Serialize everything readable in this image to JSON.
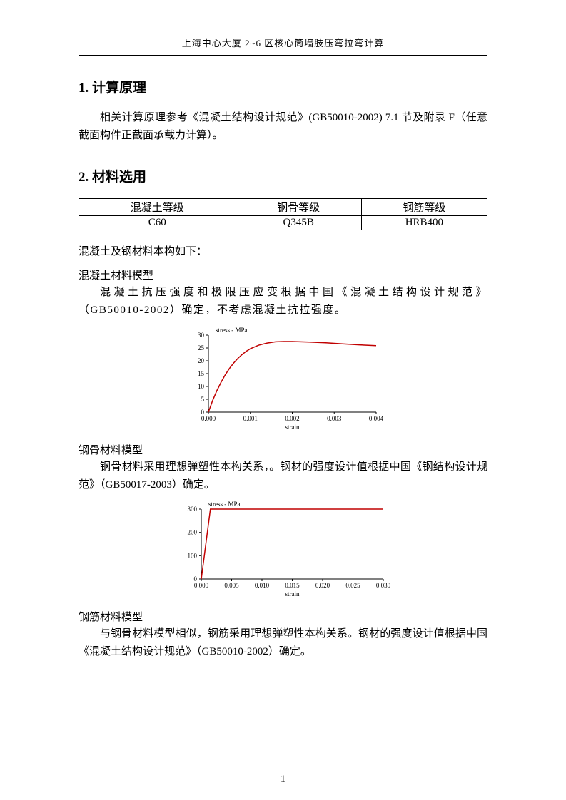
{
  "header": "上海中心大厦 2~6 区核心筒墙肢压弯拉弯计算",
  "section1": {
    "num": "1.",
    "title": "计算原理",
    "para": "相关计算原理参考《混凝土结构设计规范》(GB50010-2002) 7.1 节及附录 F（任意截面构件正截面承载力计算）。"
  },
  "section2": {
    "num": "2.",
    "title": "材料选用",
    "table": {
      "headers": [
        "混凝土等级",
        "钢骨等级",
        "钢筋等级"
      ],
      "row": [
        "C60",
        "Q345B",
        "HRB400"
      ]
    },
    "intro": "混凝土及钢材料本构如下：",
    "concrete": {
      "title": "混凝土材料模型",
      "para": "混凝土抗压强度和极限压应变根据中国《混凝土结构设计规范》（GB50010-2002）确定，不考虑混凝土抗拉强度。"
    },
    "steelShape": {
      "title": "钢骨材料模型",
      "para": "钢骨材料采用理想弹塑性本构关系，。钢材的强度设计值根据中国《钢结构设计规范》（GB50017-2003）确定。"
    },
    "rebar": {
      "title": "钢筋材料模型",
      "para": "与钢骨材料模型相似，钢筋采用理想弹塑性本构关系。钢材的强度设计值根据中国《混凝土结构设计规范》（GB50010-2002）确定。"
    }
  },
  "chart_concrete": {
    "type": "line",
    "title": "stress - MPa",
    "xlabel": "strain",
    "xlim": [
      0,
      0.004
    ],
    "ylim": [
      0,
      30
    ],
    "xticks": [
      0.0,
      0.001,
      0.002,
      0.003,
      0.004
    ],
    "xtick_labels": [
      "0.000",
      "0.001",
      "0.002",
      "0.003",
      "0.004"
    ],
    "yticks": [
      0,
      5,
      10,
      15,
      20,
      25,
      30
    ],
    "ytick_labels": [
      "0",
      "5",
      "10",
      "15",
      "20",
      "25",
      "30"
    ],
    "curve_color": "#c00000",
    "axis_color": "#000000",
    "bg": "#ffffff",
    "tick_fontsize": 9,
    "title_fontsize": 9,
    "points": [
      [
        0.0,
        0.0
      ],
      [
        0.0001,
        4.5
      ],
      [
        0.0002,
        8.3
      ],
      [
        0.0003,
        11.6
      ],
      [
        0.0004,
        14.5
      ],
      [
        0.0005,
        17.0
      ],
      [
        0.0006,
        19.1
      ],
      [
        0.0007,
        20.9
      ],
      [
        0.0008,
        22.4
      ],
      [
        0.0009,
        23.7
      ],
      [
        0.001,
        24.7
      ],
      [
        0.0012,
        26.1
      ],
      [
        0.0014,
        26.9
      ],
      [
        0.0016,
        27.4
      ],
      [
        0.0018,
        27.5
      ],
      [
        0.002,
        27.5
      ],
      [
        0.0024,
        27.3
      ],
      [
        0.0028,
        27.0
      ],
      [
        0.0032,
        26.6
      ],
      [
        0.0036,
        26.2
      ],
      [
        0.004,
        25.9
      ]
    ]
  },
  "chart_steel": {
    "type": "line",
    "title": "stress - MPa",
    "xlabel": "strain",
    "xlim": [
      0,
      0.03
    ],
    "ylim": [
      0,
      300
    ],
    "xticks": [
      0.0,
      0.005,
      0.01,
      0.015,
      0.02,
      0.025,
      0.03
    ],
    "xtick_labels": [
      "0.000",
      "0.005",
      "0.010",
      "0.015",
      "0.020",
      "0.025",
      "0.030"
    ],
    "yticks": [
      0,
      100,
      200,
      300
    ],
    "ytick_labels": [
      "0",
      "100",
      "200",
      "300"
    ],
    "curve_color": "#c00000",
    "axis_color": "#000000",
    "bg": "#ffffff",
    "tick_fontsize": 9,
    "title_fontsize": 9,
    "points": [
      [
        0.0,
        0
      ],
      [
        0.0015,
        300
      ],
      [
        0.03,
        300
      ]
    ]
  },
  "page_number": "1"
}
